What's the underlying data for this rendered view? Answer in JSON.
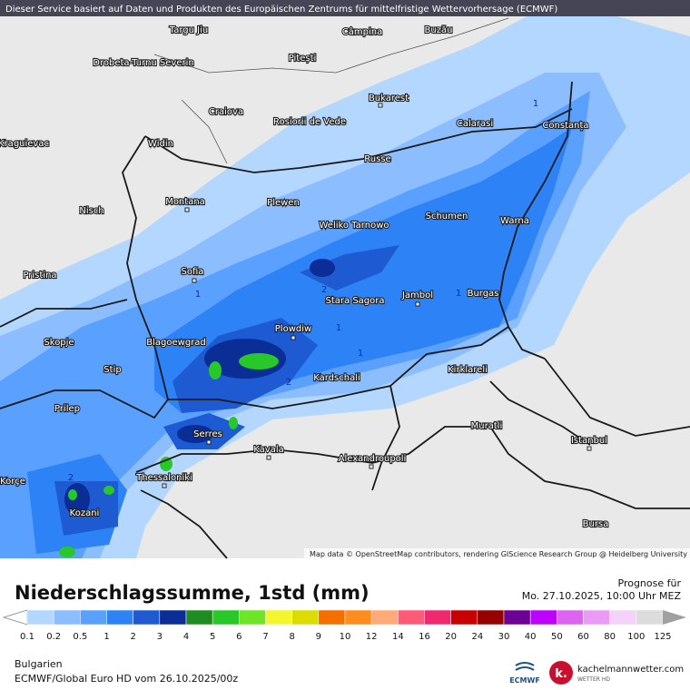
{
  "banner": "Dieser Service basiert auf Daten und Produkten des Europäischen Zentrums für mittelfristige Wettervorhersage (ECMWF)",
  "map": {
    "cities": [
      "Targu Jiu",
      "Câmpina",
      "Buzău",
      "Drobeta-Turnu Severin",
      "Pitești",
      "Craiova",
      "Bukarest",
      "Rosiorii de Vede",
      "Calarasi",
      "Constanța",
      "Kraguievac",
      "Widin",
      "Russe",
      "Montana",
      "Plewen",
      "Nisch",
      "Schumen",
      "Warna",
      "Weliko Tarnowo",
      "Pristina",
      "Sofia",
      "Stara Sagora",
      "Jambol",
      "Burgas",
      "Skopje",
      "Blagoewgrad",
      "Plowdiw",
      "Stip",
      "Kardschali",
      "Kirklareli",
      "Prilep",
      "Serres",
      "Muratli",
      "Istanbul",
      "Kavala",
      "Alexandroupoli",
      "Thessaloniki",
      "Korçe",
      "Kozani",
      "Bursa"
    ],
    "contour_labels": [
      "1",
      "1",
      "1",
      "1",
      "1",
      "2",
      "2",
      "2"
    ],
    "attribution": "Map data © OpenStreetMap contributors, rendering GIScience Research Group @ Heidelberg University"
  },
  "legend": {
    "title": "Niederschlagssumme, 1std (mm)",
    "forecast_label": "Prognose für",
    "forecast_time": "Mo. 27.10.2025, 10:00 Uhr MEZ",
    "levels": [
      0.1,
      0.2,
      0.5,
      1,
      2,
      3,
      4,
      5,
      6,
      7,
      8,
      9,
      10,
      12,
      14,
      16,
      20,
      24,
      30,
      40,
      50,
      60,
      80,
      100,
      125
    ],
    "colors": [
      "#b4d7ff",
      "#8cbeff",
      "#5aa0ff",
      "#2d82f5",
      "#1e5ad2",
      "#0a2d96",
      "#1e8c1e",
      "#28c828",
      "#6ee628",
      "#f5f52d",
      "#dcdc00",
      "#f56e00",
      "#ff8c1e",
      "#ffaa78",
      "#ff5a78",
      "#f0286e",
      "#c80000",
      "#960000",
      "#6e0096",
      "#be00ff",
      "#dc64f0",
      "#eb9bf5",
      "#f5d2fa",
      "#dcdcdc"
    ]
  },
  "footer": {
    "region": "Bulgarien",
    "model_run": "ECMWF/Global Euro HD vom  26.10.2025/00z",
    "ecmwf": "ECMWF",
    "site": "kachelmannwetter.com",
    "site_sub": "WETTER HD"
  }
}
